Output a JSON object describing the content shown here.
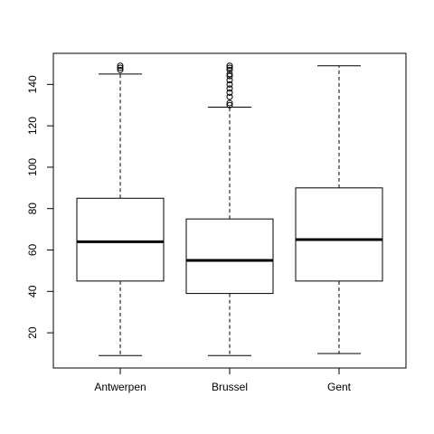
{
  "chart_data": {
    "type": "box",
    "title": "",
    "xlabel": "",
    "ylabel": "",
    "ylim": [
      3,
      155
    ],
    "yticks": [
      20,
      40,
      60,
      80,
      100,
      120,
      140
    ],
    "grid": false,
    "legend": "none",
    "categories": [
      "Antwerpen",
      "Brussel",
      "Gent"
    ],
    "boxes": [
      {
        "category": "Antwerpen",
        "whisker_low": 9,
        "q1": 45,
        "median": 64,
        "q3": 85,
        "whisker_high": 145,
        "outliers": [
          147,
          148,
          149
        ]
      },
      {
        "category": "Brussel",
        "whisker_low": 9,
        "q1": 39,
        "median": 55,
        "q3": 75,
        "whisker_high": 129,
        "outliers": [
          130,
          131,
          134,
          136,
          138,
          140,
          142,
          144,
          145,
          147,
          148,
          149
        ]
      },
      {
        "category": "Gent",
        "whisker_low": 10,
        "q1": 45,
        "median": 65,
        "q3": 90,
        "whisker_high": 149,
        "outliers": []
      }
    ],
    "colors": {
      "box_fill": "#ffffff",
      "stroke": "#000000"
    }
  }
}
